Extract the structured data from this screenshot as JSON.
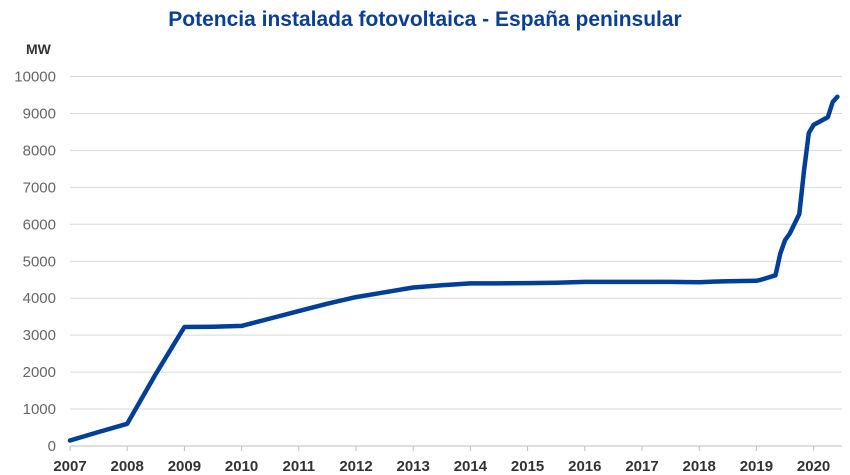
{
  "chart_data": {
    "type": "line",
    "title": "Potencia instalada fotovoltaica - España peninsular",
    "ylabel": "MW",
    "xlabel": "",
    "ylim": [
      0,
      10000
    ],
    "yticks": [
      "0",
      "1000",
      "2000",
      "3000",
      "4000",
      "5000",
      "6000",
      "7000",
      "8000",
      "9000",
      "10000"
    ],
    "xticks": [
      "2007",
      "2008",
      "2009",
      "2010",
      "2011",
      "2012",
      "2013",
      "2014",
      "2015",
      "2016",
      "2017",
      "2018",
      "2019",
      "2020"
    ],
    "grid": "horizontal",
    "line_color": "#003f98",
    "points": [
      [
        "2007-01",
        150
      ],
      [
        "2007-07",
        380
      ],
      [
        "2008-01",
        600
      ],
      [
        "2008-07",
        1950
      ],
      [
        "2009-01",
        3220
      ],
      [
        "2009-07",
        3230
      ],
      [
        "2010-01",
        3250
      ],
      [
        "2010-07",
        3450
      ],
      [
        "2011-01",
        3650
      ],
      [
        "2011-07",
        3850
      ],
      [
        "2012-01",
        4030
      ],
      [
        "2012-07",
        4160
      ],
      [
        "2013-01",
        4290
      ],
      [
        "2013-07",
        4350
      ],
      [
        "2014-01",
        4400
      ],
      [
        "2014-07",
        4400
      ],
      [
        "2015-01",
        4410
      ],
      [
        "2015-07",
        4420
      ],
      [
        "2016-01",
        4440
      ],
      [
        "2016-07",
        4440
      ],
      [
        "2017-01",
        4440
      ],
      [
        "2017-07",
        4440
      ],
      [
        "2018-01",
        4430
      ],
      [
        "2018-04",
        4450
      ],
      [
        "2018-07",
        4460
      ],
      [
        "2019-01",
        4470
      ],
      [
        "2019-02",
        4500
      ],
      [
        "2019-05",
        4620
      ],
      [
        "2019-06",
        5200
      ],
      [
        "2019-07",
        5570
      ],
      [
        "2019-08",
        5750
      ],
      [
        "2019-10",
        6280
      ],
      [
        "2019-11",
        7470
      ],
      [
        "2019-12",
        8470
      ],
      [
        "2020-01",
        8690
      ],
      [
        "2020-04",
        8900
      ],
      [
        "2020-05",
        9310
      ],
      [
        "2020-06",
        9450
      ]
    ]
  }
}
